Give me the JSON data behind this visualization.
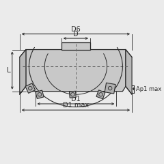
{
  "bg_color": "#ebebeb",
  "line_color": "#2a2a2a",
  "body_fill": "#c8c8c8",
  "body_fill2": "#b8b8b8",
  "insert_fill": "#b0b0b0",
  "dashed_color": "#666666",
  "figsize": [
    2.4,
    2.4
  ],
  "dpi": 100,
  "labels": {
    "D6": "D6",
    "D": "D",
    "D1": "D1",
    "D1max": "D1 max",
    "L": "L",
    "Ap1max": "Ap1 max"
  }
}
